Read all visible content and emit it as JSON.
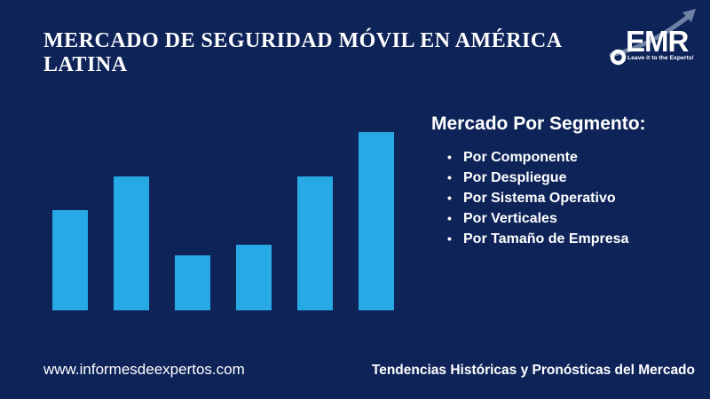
{
  "colors": {
    "background": "#0E2459",
    "bar": "#27A9E5",
    "text": "#FFFFFF",
    "logo_arrow": "#6F82A5"
  },
  "header": {
    "title": "MERCADO DE SEGURIDAD MÓVIL EN AMÉRICA LATINA",
    "logo": {
      "name": "EMR",
      "tagline": "Leave it to the Experts!"
    }
  },
  "segments": {
    "heading": "Mercado Por Segmento:",
    "items": [
      {
        "label": "Por Componente"
      },
      {
        "label": "Por Despliegue"
      },
      {
        "label": "Por Sistema Operativo"
      },
      {
        "label": "Por Verticales"
      },
      {
        "label": "Por Tamaño de Empresa"
      }
    ]
  },
  "footer": {
    "website": "www.informesdeexpertos.com",
    "tagline": "Tendencias Históricas y Pronósticas del Mercado"
  },
  "chart_data": {
    "type": "bar",
    "categories": [
      "",
      "",
      "",
      "",
      "",
      ""
    ],
    "values": [
      56,
      75,
      31,
      37,
      75,
      100
    ],
    "title": "",
    "xlabel": "",
    "ylabel": "",
    "ylim": [
      0,
      100
    ],
    "bar_color": "#27A9E5",
    "legend": null,
    "grid": false,
    "note": "Decorative bar chart with no axes, ticks or labels; values are relative heights as percent of tallest bar"
  }
}
